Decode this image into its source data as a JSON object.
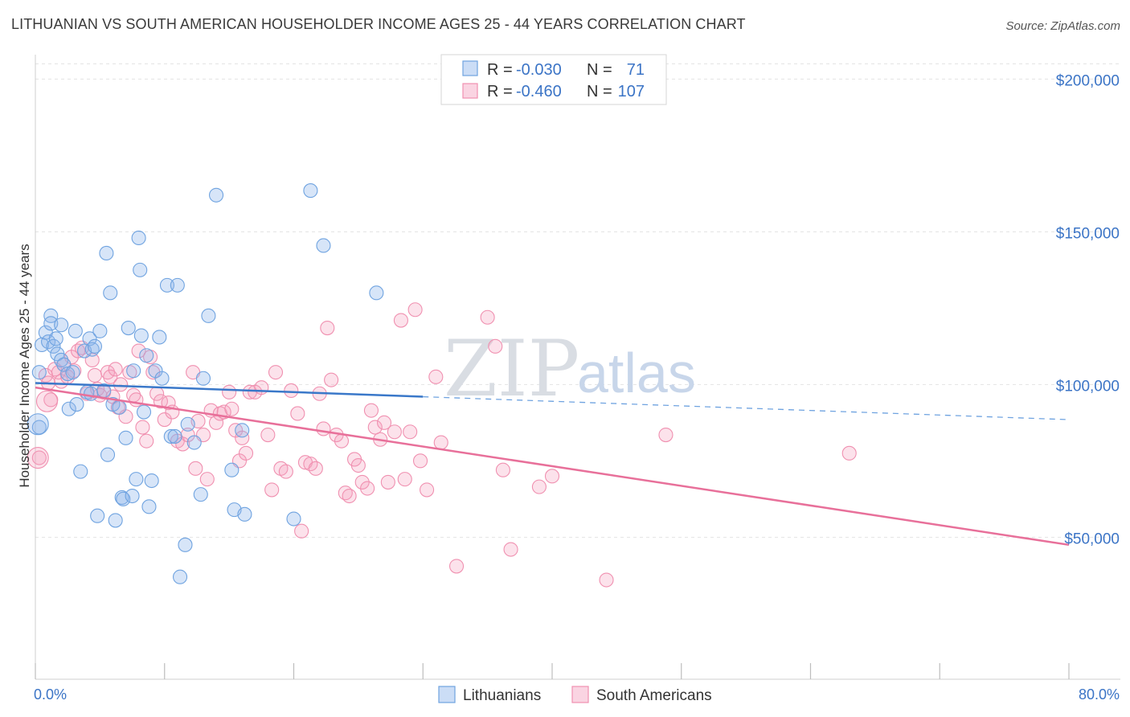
{
  "title": "LITHUANIAN VS SOUTH AMERICAN HOUSEHOLDER INCOME AGES 25 - 44 YEARS CORRELATION CHART",
  "source": "Source: ZipAtlas.com",
  "watermark": {
    "zip": "ZIP",
    "atlas": "atlas"
  },
  "legend": {
    "rows": [
      {
        "r_label": "R = ",
        "r_value": "-0.030",
        "n_label": "N = ",
        "n_value": "71",
        "color": "#6fa3e0"
      },
      {
        "r_label": "R = ",
        "r_value": "-0.460",
        "n_label": "N = ",
        "n_value": "107",
        "color": "#f090b0"
      }
    ]
  },
  "bottom_legend": [
    "Lithuanians",
    "South Americans"
  ],
  "chart_data": {
    "type": "scatter",
    "xlabel": "",
    "ylabel": "Householder Income Ages 25 - 44 years",
    "x_tick_labels": [
      "0.0%",
      "80.0%"
    ],
    "y_tick_labels": [
      "$50,000",
      "$100,000",
      "$150,000",
      "$200,000"
    ],
    "y_ticks": [
      50000,
      100000,
      150000,
      200000
    ],
    "xlim": [
      0,
      80
    ],
    "ylim": [
      3500,
      208000
    ],
    "grid": true,
    "legend_position": "top-center",
    "series": [
      {
        "name": "Lithuanians",
        "color": "#6fa3e0",
        "fill": "rgba(140,180,235,0.35)",
        "trend": {
          "x0": 0,
          "y0": 100500,
          "x1": 30,
          "y1": 96000,
          "dash_to_x": 80,
          "dash_to_y": 88500
        },
        "points": [
          [
            0.3,
            104000
          ],
          [
            0.3,
            86000
          ],
          [
            0.5,
            113000
          ],
          [
            0.8,
            117000
          ],
          [
            1.0,
            114000
          ],
          [
            1.2,
            122500
          ],
          [
            1.2,
            120000
          ],
          [
            1.4,
            112500
          ],
          [
            1.6,
            115000
          ],
          [
            1.7,
            110000
          ],
          [
            2.0,
            119500
          ],
          [
            2.0,
            108000
          ],
          [
            2.2,
            106500
          ],
          [
            2.5,
            103500
          ],
          [
            2.6,
            92000
          ],
          [
            2.9,
            104000
          ],
          [
            3.1,
            117500
          ],
          [
            3.2,
            93500
          ],
          [
            3.5,
            71500
          ],
          [
            3.8,
            111000
          ],
          [
            4.0,
            97500
          ],
          [
            4.2,
            115000
          ],
          [
            4.4,
            111500
          ],
          [
            4.6,
            112500
          ],
          [
            4.8,
            57000
          ],
          [
            5.0,
            117500
          ],
          [
            5.3,
            98000
          ],
          [
            5.5,
            143000
          ],
          [
            5.6,
            77000
          ],
          [
            5.8,
            130000
          ],
          [
            6.0,
            93500
          ],
          [
            6.2,
            55500
          ],
          [
            6.5,
            92500
          ],
          [
            6.7,
            63000
          ],
          [
            6.8,
            62500
          ],
          [
            7.0,
            82500
          ],
          [
            7.2,
            118500
          ],
          [
            7.5,
            63500
          ],
          [
            7.6,
            104500
          ],
          [
            7.8,
            69000
          ],
          [
            8.0,
            148000
          ],
          [
            8.1,
            137500
          ],
          [
            8.2,
            116000
          ],
          [
            8.4,
            91000
          ],
          [
            8.6,
            109500
          ],
          [
            8.8,
            60000
          ],
          [
            9.0,
            68500
          ],
          [
            9.3,
            104500
          ],
          [
            9.6,
            115500
          ],
          [
            9.8,
            102000
          ],
          [
            10.2,
            132500
          ],
          [
            10.5,
            83000
          ],
          [
            10.8,
            83000
          ],
          [
            11.0,
            132500
          ],
          [
            11.2,
            37000
          ],
          [
            11.6,
            47500
          ],
          [
            11.8,
            87000
          ],
          [
            12.3,
            81000
          ],
          [
            12.8,
            64000
          ],
          [
            13.0,
            102000
          ],
          [
            13.4,
            122500
          ],
          [
            14.0,
            162000
          ],
          [
            15.2,
            72000
          ],
          [
            15.4,
            59000
          ],
          [
            16.0,
            85000
          ],
          [
            16.2,
            57500
          ],
          [
            20.0,
            56000
          ],
          [
            21.3,
            163500
          ],
          [
            22.3,
            145500
          ],
          [
            26.4,
            130000
          ],
          [
            4.3,
            97000
          ]
        ],
        "big_points": [
          [
            0.2,
            87000
          ]
        ]
      },
      {
        "name": "South Americans",
        "color": "#f090b0",
        "fill": "rgba(245,160,190,0.30)",
        "trend": {
          "x0": 0,
          "y0": 99000,
          "x1": 80,
          "y1": 47500
        },
        "points": [
          [
            0.3,
            76000
          ],
          [
            0.8,
            103000
          ],
          [
            1.0,
            100500
          ],
          [
            1.2,
            95000
          ],
          [
            1.5,
            105000
          ],
          [
            1.8,
            104000
          ],
          [
            2.0,
            101000
          ],
          [
            2.2,
            106500
          ],
          [
            2.5,
            102500
          ],
          [
            2.8,
            109000
          ],
          [
            3.0,
            104500
          ],
          [
            3.3,
            111000
          ],
          [
            3.6,
            112000
          ],
          [
            4.0,
            97000
          ],
          [
            4.4,
            108000
          ],
          [
            4.6,
            103000
          ],
          [
            4.8,
            98500
          ],
          [
            5.0,
            96500
          ],
          [
            5.3,
            97500
          ],
          [
            5.6,
            104000
          ],
          [
            5.8,
            102500
          ],
          [
            6.0,
            96000
          ],
          [
            6.2,
            105000
          ],
          [
            6.4,
            92500
          ],
          [
            6.6,
            100000
          ],
          [
            7.0,
            89500
          ],
          [
            7.3,
            104000
          ],
          [
            7.6,
            96500
          ],
          [
            7.8,
            95000
          ],
          [
            8.0,
            111000
          ],
          [
            8.3,
            86000
          ],
          [
            8.6,
            81500
          ],
          [
            8.9,
            109000
          ],
          [
            9.1,
            104000
          ],
          [
            9.4,
            97000
          ],
          [
            9.7,
            94500
          ],
          [
            10.0,
            88500
          ],
          [
            10.3,
            94000
          ],
          [
            10.6,
            91000
          ],
          [
            11.0,
            81500
          ],
          [
            11.4,
            80500
          ],
          [
            11.8,
            83500
          ],
          [
            12.2,
            104000
          ],
          [
            12.4,
            72500
          ],
          [
            12.6,
            88000
          ],
          [
            13.0,
            83500
          ],
          [
            13.3,
            69000
          ],
          [
            13.6,
            91500
          ],
          [
            14.0,
            87500
          ],
          [
            14.3,
            90500
          ],
          [
            14.6,
            91000
          ],
          [
            15.0,
            97500
          ],
          [
            15.2,
            92000
          ],
          [
            15.5,
            85000
          ],
          [
            15.8,
            75000
          ],
          [
            16.0,
            82500
          ],
          [
            16.3,
            77500
          ],
          [
            16.6,
            97500
          ],
          [
            17.0,
            97500
          ],
          [
            17.5,
            99000
          ],
          [
            18.0,
            83500
          ],
          [
            18.3,
            65500
          ],
          [
            18.6,
            104000
          ],
          [
            19.0,
            72500
          ],
          [
            19.4,
            71500
          ],
          [
            19.8,
            98000
          ],
          [
            20.3,
            90500
          ],
          [
            20.6,
            52000
          ],
          [
            20.9,
            74500
          ],
          [
            21.3,
            74000
          ],
          [
            21.7,
            72500
          ],
          [
            22.0,
            97000
          ],
          [
            22.3,
            85500
          ],
          [
            22.6,
            118500
          ],
          [
            22.9,
            101500
          ],
          [
            23.3,
            83500
          ],
          [
            23.7,
            81500
          ],
          [
            24.0,
            64500
          ],
          [
            24.3,
            63500
          ],
          [
            24.7,
            75500
          ],
          [
            25.0,
            73500
          ],
          [
            25.3,
            68000
          ],
          [
            25.7,
            66000
          ],
          [
            26.0,
            91500
          ],
          [
            26.3,
            86000
          ],
          [
            26.7,
            82000
          ],
          [
            27.0,
            87500
          ],
          [
            27.3,
            68000
          ],
          [
            27.8,
            84500
          ],
          [
            28.3,
            121000
          ],
          [
            28.6,
            69000
          ],
          [
            29.0,
            84500
          ],
          [
            29.4,
            124500
          ],
          [
            29.8,
            75000
          ],
          [
            30.3,
            65500
          ],
          [
            31.0,
            102500
          ],
          [
            31.4,
            81000
          ],
          [
            32.6,
            40500
          ],
          [
            35.0,
            122000
          ],
          [
            35.6,
            112500
          ],
          [
            36.2,
            72000
          ],
          [
            36.8,
            46000
          ],
          [
            39.0,
            66500
          ],
          [
            40.0,
            70000
          ],
          [
            44.2,
            36000
          ],
          [
            48.8,
            83500
          ],
          [
            63.0,
            77500
          ]
        ],
        "big_points": [
          [
            0.2,
            76000
          ],
          [
            0.9,
            94500
          ]
        ]
      }
    ]
  }
}
